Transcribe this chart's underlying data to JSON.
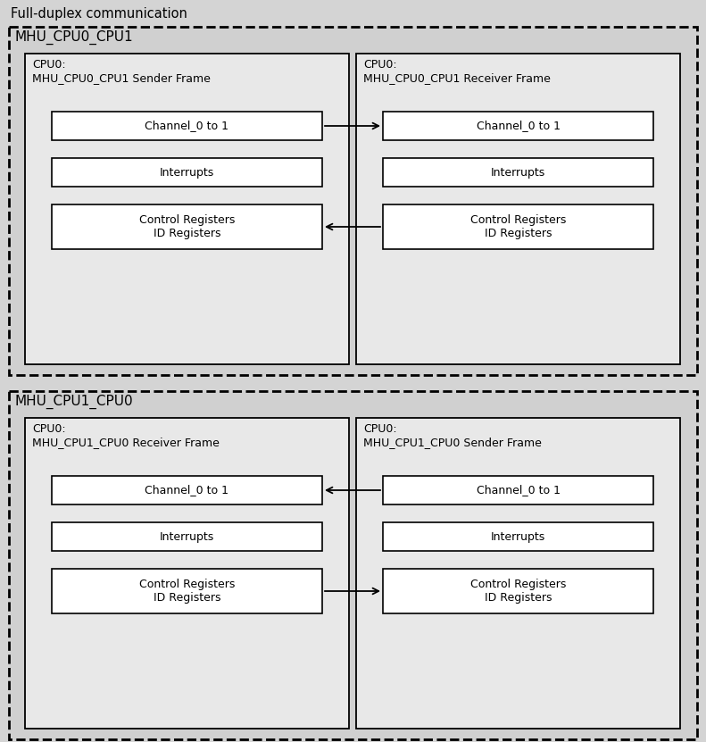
{
  "title": "Full-duplex communication",
  "bg_color": "#d4d4d4",
  "frame_bg": "#d0d0d0",
  "inner_bg": "#e8e8e8",
  "white": "#ffffff",
  "top_outer_label": "MHU_CPU0_CPU1",
  "top_left_label": "CPU0:\nMHU_CPU0_CPU1 Sender Frame",
  "top_right_label": "CPU0:\nMHU_CPU0_CPU1 Receiver Frame",
  "bottom_outer_label": "MHU_CPU1_CPU0",
  "bottom_left_label": "CPU0:\nMHU_CPU1_CPU0 Receiver Frame",
  "bottom_right_label": "CPU0:\nMHU_CPU1_CPU0 Sender Frame",
  "box_labels": [
    "Channel_0 to 1",
    "Interrupts",
    "Control Registers\nID Registers"
  ],
  "fig_w": 7.91,
  "fig_h": 8.31,
  "dpi": 100
}
